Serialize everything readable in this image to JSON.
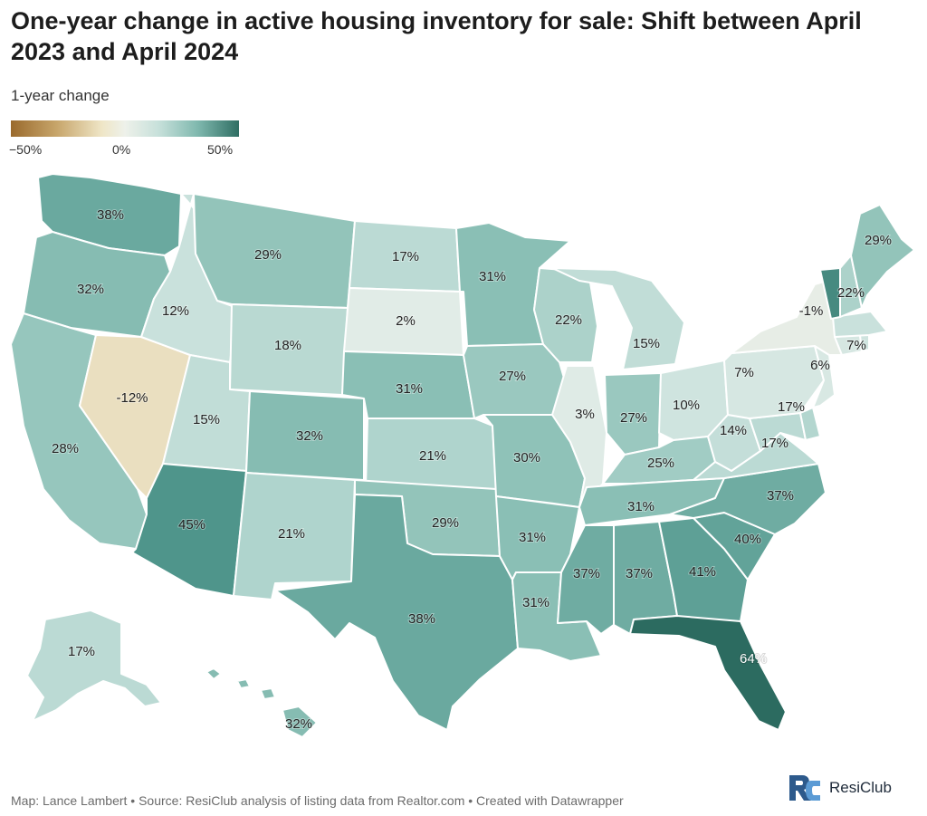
{
  "title": "One-year change in active housing inventory for sale: Shift between April 2023 and April 2024",
  "legend": {
    "title": "1-year change",
    "ticks": [
      "−50%",
      "0%",
      "50%"
    ],
    "range": [
      -50,
      50
    ]
  },
  "footer": "Map: Lance Lambert • Source: ResiClub analysis of listing data from Realtor.com • Created with Datawrapper",
  "brand": "ResiClub",
  "states": [
    {
      "id": "WA",
      "value": 38,
      "label": "38%"
    },
    {
      "id": "OR",
      "value": 32,
      "label": "32%"
    },
    {
      "id": "CA",
      "value": 28,
      "label": "28%"
    },
    {
      "id": "NV",
      "value": -12,
      "label": "-12%"
    },
    {
      "id": "ID",
      "value": 12,
      "label": "12%"
    },
    {
      "id": "MT",
      "value": 29,
      "label": "29%"
    },
    {
      "id": "WY",
      "value": 18,
      "label": "18%"
    },
    {
      "id": "UT",
      "value": 15,
      "label": "15%"
    },
    {
      "id": "AZ",
      "value": 45,
      "label": "45%"
    },
    {
      "id": "CO",
      "value": 32,
      "label": "32%"
    },
    {
      "id": "NM",
      "value": 21,
      "label": "21%"
    },
    {
      "id": "ND",
      "value": 17,
      "label": "17%"
    },
    {
      "id": "SD",
      "value": 2,
      "label": "2%"
    },
    {
      "id": "NE",
      "value": 31,
      "label": "31%"
    },
    {
      "id": "KS",
      "value": 21,
      "label": "21%"
    },
    {
      "id": "OK",
      "value": 29,
      "label": "29%"
    },
    {
      "id": "TX",
      "value": 38,
      "label": "38%"
    },
    {
      "id": "MN",
      "value": 31,
      "label": "31%"
    },
    {
      "id": "IA",
      "value": 27,
      "label": "27%"
    },
    {
      "id": "MO",
      "value": 30,
      "label": "30%"
    },
    {
      "id": "AR",
      "value": 31,
      "label": "31%"
    },
    {
      "id": "LA",
      "value": 31,
      "label": "31%"
    },
    {
      "id": "WI",
      "value": 22,
      "label": "22%"
    },
    {
      "id": "IL",
      "value": 3,
      "label": "3%"
    },
    {
      "id": "MI",
      "value": 15,
      "label": "15%"
    },
    {
      "id": "IN",
      "value": 27,
      "label": "27%"
    },
    {
      "id": "OH",
      "value": 10,
      "label": "10%"
    },
    {
      "id": "KY",
      "value": 25,
      "label": "25%"
    },
    {
      "id": "TN",
      "value": 31,
      "label": "31%"
    },
    {
      "id": "MS",
      "value": 37,
      "label": "37%"
    },
    {
      "id": "AL",
      "value": 37,
      "label": "37%"
    },
    {
      "id": "GA",
      "value": 41,
      "label": "41%"
    },
    {
      "id": "FL",
      "value": 64,
      "label": "64%"
    },
    {
      "id": "SC",
      "value": 40,
      "label": "40%"
    },
    {
      "id": "NC",
      "value": 37,
      "label": "37%"
    },
    {
      "id": "VA",
      "value": 17,
      "label": "17%"
    },
    {
      "id": "WV",
      "value": 14,
      "label": "14%"
    },
    {
      "id": "MD",
      "value": 17,
      "label": "17%"
    },
    {
      "id": "PA",
      "value": 7,
      "label": "7%"
    },
    {
      "id": "NJ",
      "value": 6,
      "label": "6%"
    },
    {
      "id": "NY",
      "value": -1,
      "label": "-1%"
    },
    {
      "id": "CT",
      "value": 7,
      "label": "7%"
    },
    {
      "id": "VT",
      "value": 50,
      "label": ""
    },
    {
      "id": "NH",
      "value": 22,
      "label": "22%"
    },
    {
      "id": "ME",
      "value": 29,
      "label": "29%"
    },
    {
      "id": "MA",
      "value": 12,
      "label": ""
    },
    {
      "id": "RI",
      "value": 10,
      "label": ""
    },
    {
      "id": "DE",
      "value": 20,
      "label": ""
    },
    {
      "id": "AK",
      "value": 17,
      "label": "17%"
    },
    {
      "id": "HI",
      "value": 32,
      "label": "32%"
    }
  ]
}
